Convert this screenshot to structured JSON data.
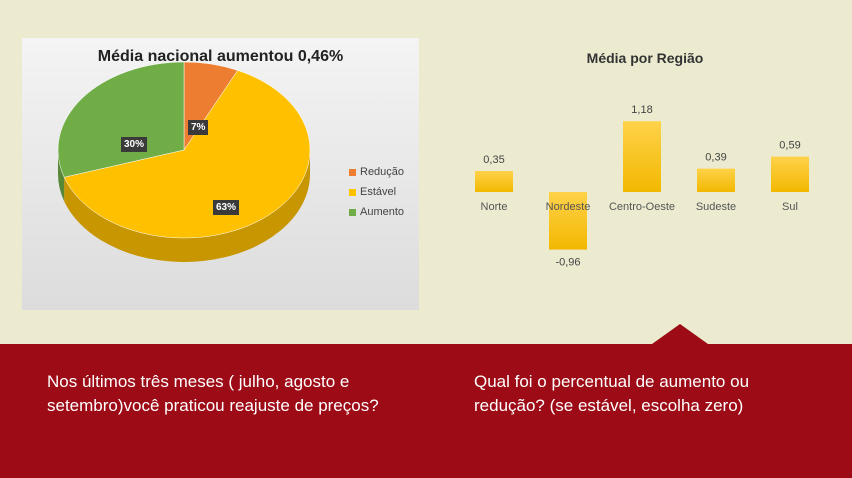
{
  "pie_chart": {
    "title": "Média nacional aumentou 0,46%",
    "legend": [
      {
        "label": "Redução",
        "color": "#ed7d31"
      },
      {
        "label": "Estável",
        "color": "#ffc000"
      },
      {
        "label": "Aumento",
        "color": "#70ad47"
      }
    ]
  },
  "bar_chart": {
    "title": "Média por Região"
  },
  "footer": {
    "left_text": "Nos últimos três meses ( julho, agosto e setembro)você praticou reajuste de preços?",
    "right_text": "Qual foi o percentual de aumento ou redução? (se estável, escolha zero)"
  },
  "chart_data": [
    {
      "type": "pie",
      "title": "Média nacional aumentou 0,46%",
      "categories": [
        "Redução",
        "Estável",
        "Aumento"
      ],
      "values": [
        7,
        63,
        30
      ],
      "labels": [
        "7%",
        "63%",
        "30%"
      ],
      "colors": [
        "#ed7d31",
        "#ffc000",
        "#70ad47"
      ],
      "legend_position": "right"
    },
    {
      "type": "bar",
      "title": "Média por Região",
      "categories": [
        "Norte",
        "Nordeste",
        "Centro-Oeste",
        "Sudeste",
        "Sul"
      ],
      "values": [
        0.35,
        -0.96,
        1.18,
        0.39,
        0.59
      ],
      "labels": [
        "0,35",
        "-0,96",
        "1,18",
        "0,39",
        "0,59"
      ],
      "ylim": [
        -1.2,
        1.3
      ],
      "grid": false,
      "color": "#ffc000"
    }
  ]
}
